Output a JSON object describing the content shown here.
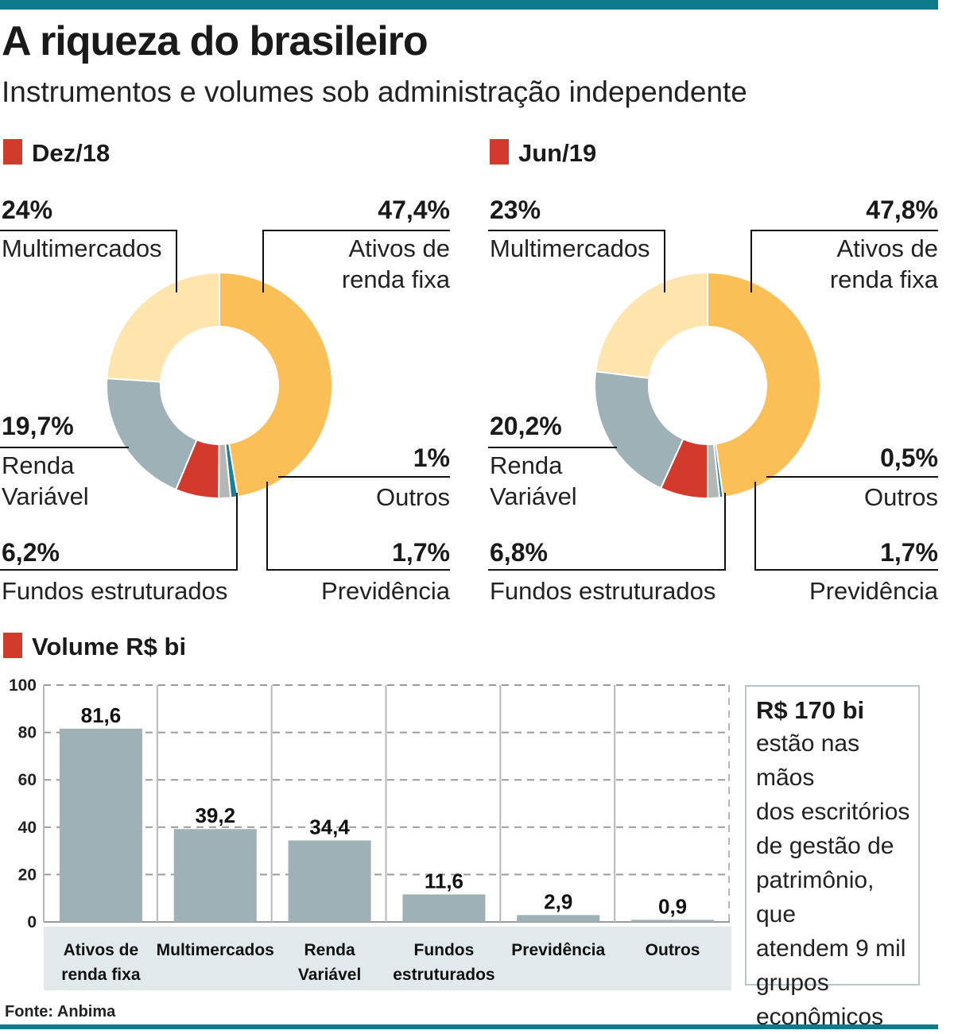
{
  "title": "A riqueza do brasileiro",
  "subtitle": "Instrumentos e volumes sob administração independente",
  "source": "Fonte: Anbima",
  "colors": {
    "renda_fixa": "#fbbf58",
    "multimercados": "#fde5ad",
    "renda_variavel": "#9db1b7",
    "fundos_estruturados": "#d23a2c",
    "previdencia": "#b3b8b5",
    "outros": "#1c7f93",
    "bar": "#9db1b7",
    "accent": "#d23a2c",
    "rule": "#0e7a8c"
  },
  "note": {
    "headline": "R$ 170 bi",
    "text": "estão nas mãos\ndos escritórios\nde gestão de\npatrimônio, que\natendem 9 mil\ngrupos\neconômicos"
  },
  "chart_data": [
    {
      "type": "pie",
      "title": "Dez/18",
      "slices": [
        {
          "label": "Ativos de renda fixa",
          "pct_label": "47,4%",
          "value": 47.4,
          "color": "#fbbf58"
        },
        {
          "label": "Outros",
          "pct_label": "1%",
          "value": 1.0,
          "color": "#1c7f93"
        },
        {
          "label": "Previdência",
          "pct_label": "1,7%",
          "value": 1.7,
          "color": "#b3b8b5"
        },
        {
          "label": "Fundos estruturados",
          "pct_label": "6,2%",
          "value": 6.2,
          "color": "#d23a2c"
        },
        {
          "label": "Renda Variável",
          "pct_label": "19,7%",
          "value": 19.7,
          "color": "#9db1b7"
        },
        {
          "label": "Multimercados",
          "pct_label": "24%",
          "value": 24.0,
          "color": "#fde5ad"
        }
      ]
    },
    {
      "type": "pie",
      "title": "Jun/19",
      "slices": [
        {
          "label": "Ativos de renda fixa",
          "pct_label": "47,8%",
          "value": 47.8,
          "color": "#fbbf58"
        },
        {
          "label": "Outros",
          "pct_label": "0,5%",
          "value": 0.5,
          "color": "#1c7f93"
        },
        {
          "label": "Previdência",
          "pct_label": "1,7%",
          "value": 1.7,
          "color": "#b3b8b5"
        },
        {
          "label": "Fundos estruturados",
          "pct_label": "6,8%",
          "value": 6.8,
          "color": "#d23a2c"
        },
        {
          "label": "Renda Variável",
          "pct_label": "20,2%",
          "value": 20.2,
          "color": "#9db1b7"
        },
        {
          "label": "Multimercados",
          "pct_label": "23%",
          "value": 23.0,
          "color": "#fde5ad"
        }
      ]
    },
    {
      "type": "bar",
      "title": "Volume R$ bi",
      "categories": [
        "Ativos de\nrenda fixa",
        "Multimercados",
        "Renda\nVariável",
        "Fundos\nestruturados",
        "Previdência",
        "Outros"
      ],
      "values": [
        81.6,
        39.2,
        34.4,
        11.6,
        2.9,
        0.9
      ],
      "value_labels": [
        "81,6",
        "39,2",
        "34,4",
        "11,6",
        "2,9",
        "0,9"
      ],
      "yticks": [
        "0",
        "20",
        "40",
        "60",
        "80",
        "100"
      ],
      "ylim": [
        0,
        100
      ],
      "grid": true
    }
  ]
}
